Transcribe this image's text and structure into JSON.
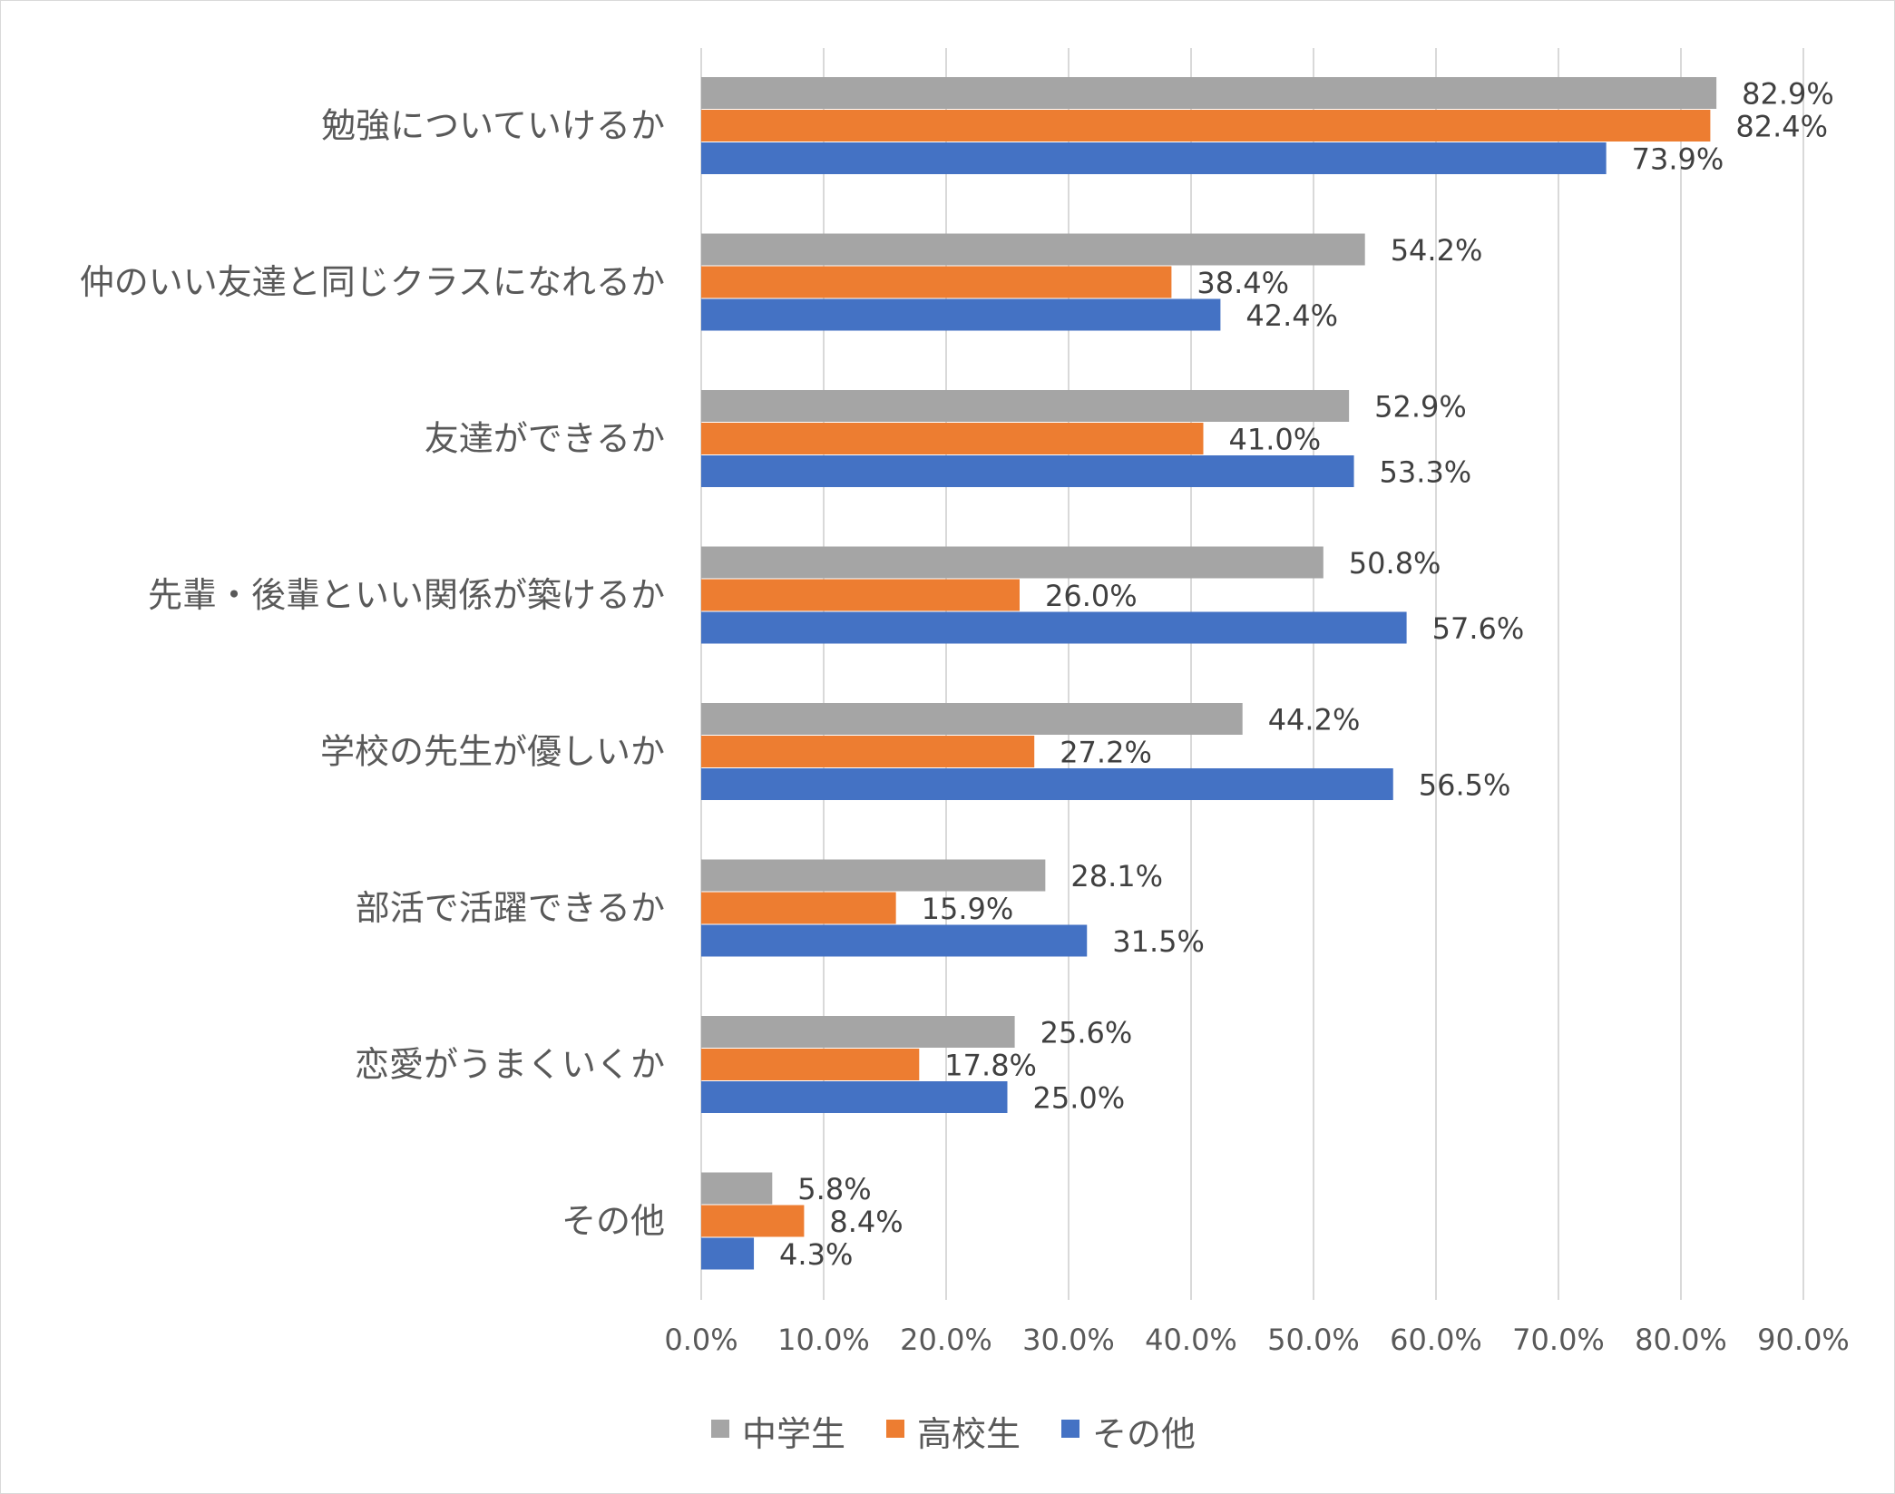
{
  "chart_data": {
    "type": "bar",
    "orientation": "horizontal",
    "title": "",
    "xlabel": "",
    "ylabel": "",
    "xlim": [
      0,
      90
    ],
    "x_ticks": [
      0,
      10,
      20,
      30,
      40,
      50,
      60,
      70,
      80,
      90
    ],
    "x_tick_labels": [
      "0.0%",
      "10.0%",
      "20.0%",
      "30.0%",
      "40.0%",
      "50.0%",
      "60.0%",
      "70.0%",
      "80.0%",
      "90.0%"
    ],
    "grid": "vertical",
    "legend_position": "bottom",
    "categories": [
      "勉強についていけるか",
      "仲のいい友達と同じクラスになれるか",
      "友達ができるか",
      "先輩・後輩といい関係が築けるか",
      "学校の先生が優しいか",
      "部活で活躍できるか",
      "恋愛がうまくいくか",
      "その他"
    ],
    "series": [
      {
        "name": "中学生",
        "color": "#a5a5a5",
        "values": [
          82.9,
          54.2,
          52.9,
          50.8,
          44.2,
          28.1,
          25.6,
          5.8
        ],
        "labels": [
          "82.9%",
          "54.2%",
          "52.9%",
          "50.8%",
          "44.2%",
          "28.1%",
          "25.6%",
          "5.8%"
        ]
      },
      {
        "name": "高校生",
        "color": "#ed7d31",
        "values": [
          82.4,
          38.4,
          41.0,
          26.0,
          27.2,
          15.9,
          17.8,
          8.4
        ],
        "labels": [
          "82.4%",
          "38.4%",
          "41.0%",
          "26.0%",
          "27.2%",
          "15.9%",
          "17.8%",
          "8.4%"
        ]
      },
      {
        "name": "その他",
        "color": "#4472c4",
        "values": [
          73.9,
          42.4,
          53.3,
          57.6,
          56.5,
          31.5,
          25.0,
          4.3
        ],
        "labels": [
          "73.9%",
          "42.4%",
          "53.3%",
          "57.6%",
          "56.5%",
          "31.5%",
          "25.0%",
          "4.3%"
        ]
      }
    ]
  }
}
